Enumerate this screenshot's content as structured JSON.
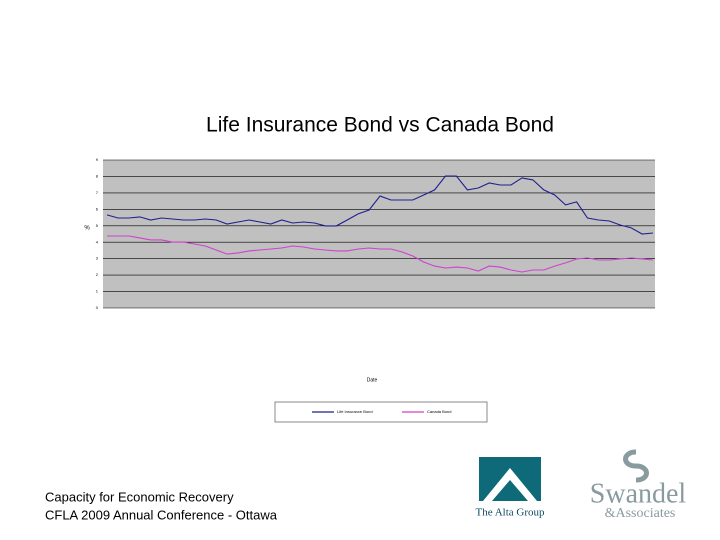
{
  "chart_data": {
    "type": "line",
    "title": "Life Insurance Bond vs Canada Bond",
    "x_label": "Date",
    "y_label": "%",
    "ylim": [
      0,
      9
    ],
    "yticks": [
      0,
      1,
      2,
      3,
      4,
      5,
      6,
      7,
      8,
      9
    ],
    "grid": true,
    "legend": "bottom",
    "series": [
      {
        "name": "Life Insurance Bond",
        "color": "#1f1f8f",
        "values": [
          5.66,
          5.47,
          5.47,
          5.54,
          5.35,
          5.47,
          5.41,
          5.35,
          5.35,
          5.41,
          5.35,
          5.11,
          5.23,
          5.35,
          5.23,
          5.11,
          5.35,
          5.17,
          5.23,
          5.17,
          4.99,
          4.99,
          5.35,
          5.72,
          5.96,
          6.81,
          6.57,
          6.57,
          6.57,
          6.87,
          7.18,
          8.03,
          8.03,
          7.18,
          7.3,
          7.6,
          7.48,
          7.48,
          7.91,
          7.79,
          7.18,
          6.87,
          6.27,
          6.45,
          5.47,
          5.35,
          5.29,
          5.05,
          4.87,
          4.5,
          4.56
        ]
      },
      {
        "name": "Canada Bond",
        "color": "#d040d0",
        "values": [
          4.38,
          4.38,
          4.38,
          4.26,
          4.14,
          4.14,
          4.01,
          4.01,
          3.89,
          3.77,
          3.53,
          3.28,
          3.35,
          3.47,
          3.53,
          3.59,
          3.65,
          3.77,
          3.71,
          3.59,
          3.53,
          3.47,
          3.47,
          3.59,
          3.65,
          3.59,
          3.59,
          3.41,
          3.16,
          2.8,
          2.55,
          2.43,
          2.49,
          2.43,
          2.25,
          2.55,
          2.49,
          2.31,
          2.19,
          2.31,
          2.31,
          2.55,
          2.74,
          2.98,
          3.04,
          2.92,
          2.92,
          2.98,
          3.04,
          2.98,
          2.92
        ]
      }
    ]
  },
  "footer": {
    "line1": "Capacity for Economic Recovery",
    "line2": "CFLA 2009 Annual Conference - Ottawa"
  },
  "logos": {
    "alta": "The Alta Group",
    "swandel": "Swandel",
    "associates": "&Associates"
  }
}
